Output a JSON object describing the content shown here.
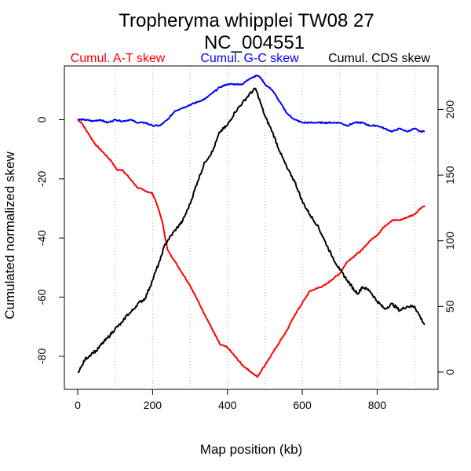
{
  "chart_data": {
    "type": "line",
    "title": "Tropheryma whipplei TW08 27",
    "subtitle": "NC_004551",
    "xlabel": "Map position (kb)",
    "ylabel": "Cumulated normalized skew",
    "xlim": [
      0,
      927
    ],
    "ylim_left": [
      -88,
      15
    ],
    "ylim_right": [
      -6,
      226
    ],
    "x_ticks": [
      0,
      200,
      400,
      600,
      800
    ],
    "y_ticks_left": [
      0,
      -20,
      -40,
      -60,
      -80
    ],
    "y_ticks_right": [
      0,
      50,
      100,
      150,
      200
    ],
    "vertical_gridlines": [
      100,
      200,
      300,
      400,
      500,
      600,
      700,
      800,
      900
    ],
    "series": [
      {
        "name": "Cumul. A-T skew",
        "color": "#ff0000",
        "axis": "left",
        "x": [
          0,
          10,
          20,
          30,
          45,
          60,
          75,
          90,
          105,
          120,
          140,
          160,
          180,
          200,
          210,
          225,
          240,
          260,
          280,
          300,
          320,
          340,
          360,
          380,
          400,
          420,
          440,
          460,
          470,
          480,
          490,
          500,
          520,
          540,
          560,
          580,
          600,
          620,
          640,
          660,
          680,
          700,
          720,
          740,
          760,
          780,
          800,
          820,
          840,
          860,
          880,
          900,
          915,
          927
        ],
        "y": [
          0,
          -1,
          -3,
          -5,
          -8,
          -10,
          -12,
          -14,
          -17,
          -17,
          -20,
          -23,
          -24,
          -25,
          -28,
          -34,
          -44,
          -48,
          -52,
          -56,
          -61,
          -66,
          -71,
          -76,
          -77,
          -80,
          -83,
          -85,
          -86,
          -87,
          -85,
          -83,
          -79,
          -75,
          -71,
          -66,
          -62,
          -58,
          -57,
          -56,
          -54,
          -52,
          -48,
          -46,
          -44,
          -41,
          -39,
          -36,
          -34,
          -34,
          -33,
          -32,
          -30,
          -29
        ]
      },
      {
        "name": "Cumul. G-C skew",
        "color": "#0000ff",
        "axis": "left",
        "x": [
          0,
          20,
          40,
          60,
          80,
          100,
          120,
          140,
          160,
          180,
          200,
          220,
          240,
          260,
          280,
          300,
          320,
          340,
          360,
          380,
          400,
          420,
          440,
          460,
          480,
          490,
          500,
          520,
          540,
          560,
          580,
          600,
          620,
          640,
          660,
          680,
          700,
          720,
          740,
          760,
          780,
          800,
          820,
          840,
          860,
          880,
          900,
          915,
          927
        ],
        "y": [
          0,
          0,
          -0.5,
          0,
          -1,
          0,
          -0.5,
          0,
          -1,
          -1,
          -2,
          -2,
          0,
          3,
          4,
          5,
          6,
          7,
          9,
          11,
          12,
          12,
          12,
          14,
          15,
          14,
          12,
          10,
          6,
          2,
          0,
          -1,
          -1,
          -1,
          -1,
          -1,
          -1,
          -2,
          -1,
          -1,
          -2,
          -2,
          -3,
          -4,
          -3,
          -4,
          -3,
          -4,
          -4
        ]
      },
      {
        "name": "Cumul. CDS skew",
        "color": "#000000",
        "axis": "right",
        "x": [
          0,
          10,
          20,
          30,
          40,
          50,
          60,
          80,
          100,
          120,
          130,
          140,
          150,
          160,
          180,
          200,
          210,
          220,
          230,
          240,
          260,
          280,
          300,
          320,
          340,
          360,
          380,
          400,
          420,
          440,
          460,
          475,
          485,
          500,
          520,
          540,
          560,
          580,
          600,
          620,
          640,
          660,
          680,
          700,
          720,
          740,
          750,
          760,
          780,
          800,
          820,
          840,
          860,
          880,
          900,
          915,
          927
        ],
        "y": [
          0,
          4,
          10,
          12,
          15,
          16,
          20,
          26,
          33,
          38,
          43,
          45,
          48,
          52,
          56,
          70,
          78,
          85,
          95,
          100,
          108,
          115,
          128,
          145,
          160,
          168,
          183,
          188,
          198,
          205,
          212,
          216,
          208,
          195,
          183,
          168,
          155,
          145,
          130,
          120,
          112,
          100,
          88,
          78,
          70,
          62,
          60,
          65,
          62,
          54,
          48,
          52,
          47,
          50,
          50,
          42,
          36
        ]
      }
    ]
  }
}
